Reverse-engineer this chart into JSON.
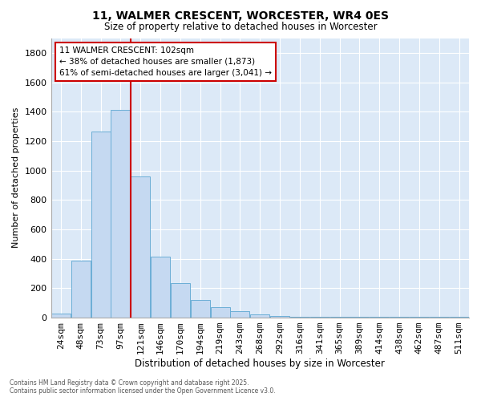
{
  "title": "11, WALMER CRESCENT, WORCESTER, WR4 0ES",
  "subtitle": "Size of property relative to detached houses in Worcester",
  "xlabel": "Distribution of detached houses by size in Worcester",
  "ylabel": "Number of detached properties",
  "categories": [
    "24sqm",
    "48sqm",
    "73sqm",
    "97sqm",
    "121sqm",
    "146sqm",
    "170sqm",
    "194sqm",
    "219sqm",
    "243sqm",
    "268sqm",
    "292sqm",
    "316sqm",
    "341sqm",
    "365sqm",
    "389sqm",
    "414sqm",
    "438sqm",
    "462sqm",
    "487sqm",
    "511sqm"
  ],
  "values": [
    25,
    390,
    1265,
    1410,
    960,
    415,
    235,
    120,
    70,
    45,
    20,
    12,
    8,
    6,
    5,
    5,
    5,
    5,
    5,
    5,
    5
  ],
  "bar_color": "#c5d9f1",
  "bar_edgecolor": "#6baed6",
  "plot_bg_color": "#dce9f7",
  "fig_bg_color": "#ffffff",
  "grid_color": "#ffffff",
  "annotation_line1": "11 WALMER CRESCENT: 102sqm",
  "annotation_line2": "← 38% of detached houses are smaller (1,873)",
  "annotation_line3": "61% of semi-detached houses are larger (3,041) →",
  "annotation_box_facecolor": "#ffffff",
  "annotation_box_edgecolor": "#cc0000",
  "redline_color": "#cc0000",
  "footer_line1": "Contains HM Land Registry data © Crown copyright and database right 2025.",
  "footer_line2": "Contains public sector information licensed under the Open Government Licence v3.0.",
  "ylim": [
    0,
    1900
  ],
  "yticks": [
    0,
    200,
    400,
    600,
    800,
    1000,
    1200,
    1400,
    1600,
    1800
  ]
}
